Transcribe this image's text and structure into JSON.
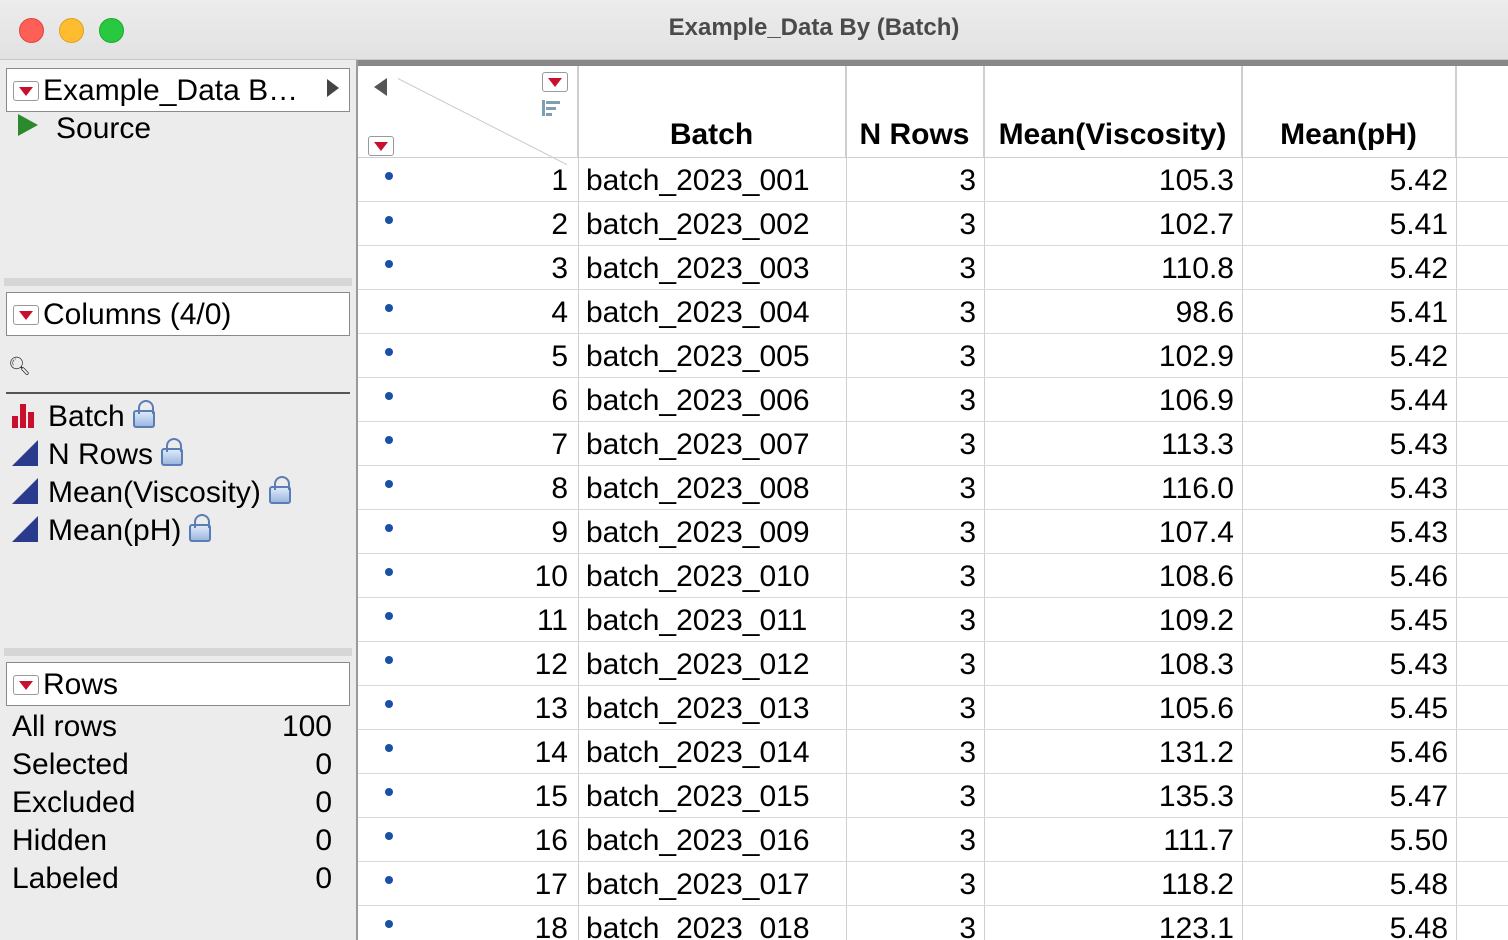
{
  "window": {
    "title": "Example_Data By (Batch)"
  },
  "panels": {
    "table": {
      "title": "Example_Data B…",
      "source_label": "Source"
    },
    "columns": {
      "title": "Columns (4/0)",
      "items": [
        {
          "label": "Batch",
          "type": "nominal"
        },
        {
          "label": "N Rows",
          "type": "continuous"
        },
        {
          "label": "Mean(Viscosity)",
          "type": "continuous"
        },
        {
          "label": "Mean(pH)",
          "type": "continuous"
        }
      ]
    },
    "rows": {
      "title": "Rows",
      "stats": [
        {
          "label": "All rows",
          "value": "100"
        },
        {
          "label": "Selected",
          "value": "0"
        },
        {
          "label": "Excluded",
          "value": "0"
        },
        {
          "label": "Hidden",
          "value": "0"
        },
        {
          "label": "Labeled",
          "value": "0"
        }
      ]
    }
  },
  "grid": {
    "headers": [
      "Batch",
      "N Rows",
      "Mean(Viscosity)",
      "Mean(pH)"
    ],
    "rows": [
      [
        "1",
        "batch_2023_001",
        "3",
        "105.3",
        "5.42"
      ],
      [
        "2",
        "batch_2023_002",
        "3",
        "102.7",
        "5.41"
      ],
      [
        "3",
        "batch_2023_003",
        "3",
        "110.8",
        "5.42"
      ],
      [
        "4",
        "batch_2023_004",
        "3",
        "98.6",
        "5.41"
      ],
      [
        "5",
        "batch_2023_005",
        "3",
        "102.9",
        "5.42"
      ],
      [
        "6",
        "batch_2023_006",
        "3",
        "106.9",
        "5.44"
      ],
      [
        "7",
        "batch_2023_007",
        "3",
        "113.3",
        "5.43"
      ],
      [
        "8",
        "batch_2023_008",
        "3",
        "116.0",
        "5.43"
      ],
      [
        "9",
        "batch_2023_009",
        "3",
        "107.4",
        "5.43"
      ],
      [
        "10",
        "batch_2023_010",
        "3",
        "108.6",
        "5.46"
      ],
      [
        "11",
        "batch_2023_011",
        "3",
        "109.2",
        "5.45"
      ],
      [
        "12",
        "batch_2023_012",
        "3",
        "108.3",
        "5.43"
      ],
      [
        "13",
        "batch_2023_013",
        "3",
        "105.6",
        "5.45"
      ],
      [
        "14",
        "batch_2023_014",
        "3",
        "131.2",
        "5.46"
      ],
      [
        "15",
        "batch_2023_015",
        "3",
        "135.3",
        "5.47"
      ],
      [
        "16",
        "batch_2023_016",
        "3",
        "111.7",
        "5.50"
      ],
      [
        "17",
        "batch_2023_017",
        "3",
        "118.2",
        "5.48"
      ],
      [
        "18",
        "batch_2023_018",
        "3",
        "123.1",
        "5.48"
      ]
    ]
  }
}
